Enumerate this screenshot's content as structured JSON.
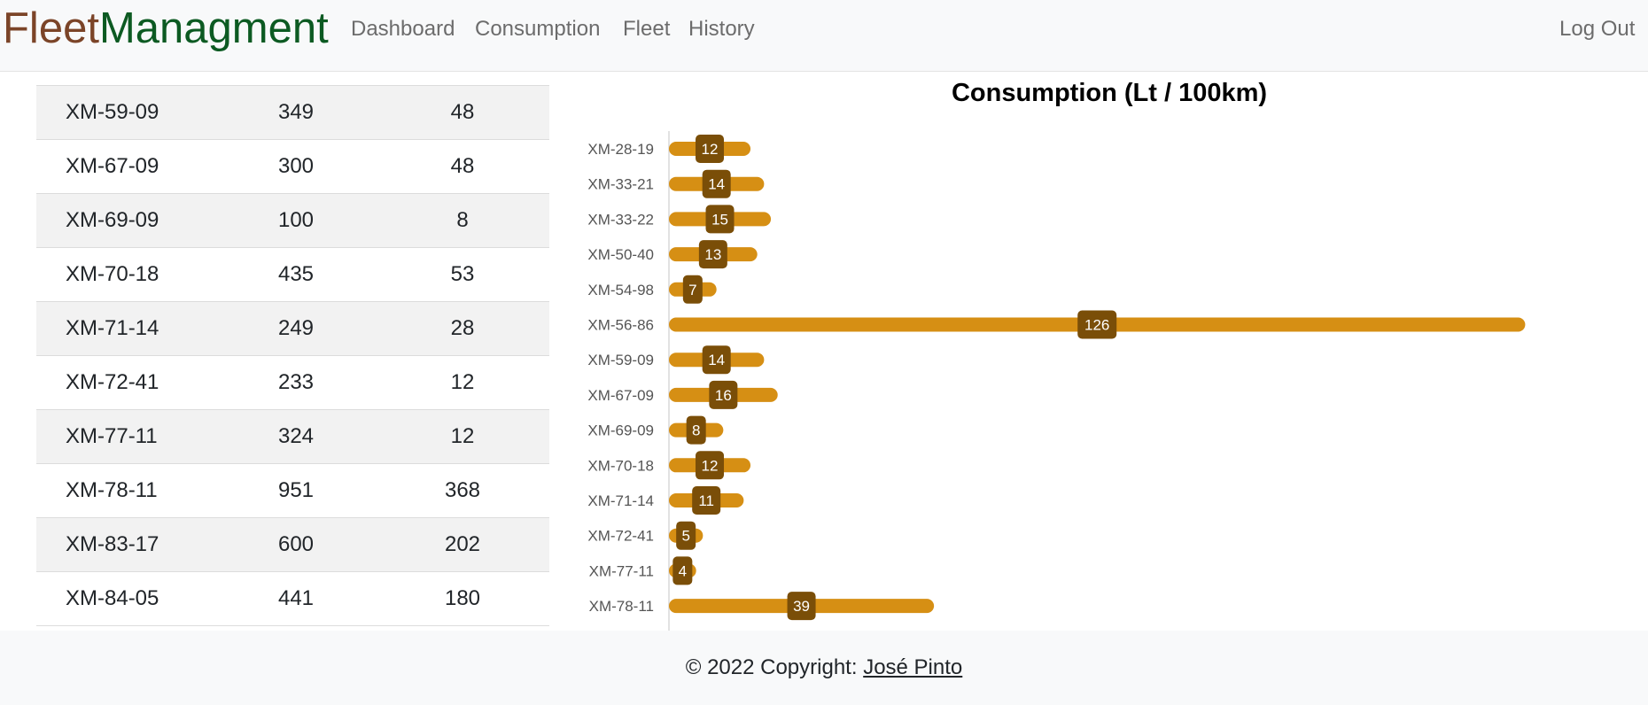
{
  "nav": {
    "brand_part1": "Fleet",
    "brand_part2": "Managment",
    "links": [
      "Dashboard",
      "Consumption",
      "Fleet",
      "History"
    ],
    "logout": "Log Out"
  },
  "table": {
    "rows": [
      [
        "XM-59-09",
        "349",
        "48"
      ],
      [
        "XM-67-09",
        "300",
        "48"
      ],
      [
        "XM-69-09",
        "100",
        "8"
      ],
      [
        "XM-70-18",
        "435",
        "53"
      ],
      [
        "XM-71-14",
        "249",
        "28"
      ],
      [
        "XM-72-41",
        "233",
        "12"
      ],
      [
        "XM-77-11",
        "324",
        "12"
      ],
      [
        "XM-78-11",
        "951",
        "368"
      ],
      [
        "XM-83-17",
        "600",
        "202"
      ],
      [
        "XM-84-05",
        "441",
        "180"
      ]
    ]
  },
  "chart_data": {
    "type": "bar",
    "orientation": "horizontal",
    "title": "Consumption (Lt / 100km)",
    "categories": [
      "XM-28-19",
      "XM-33-21",
      "XM-33-22",
      "XM-50-40",
      "XM-54-98",
      "XM-56-86",
      "XM-59-09",
      "XM-67-09",
      "XM-69-09",
      "XM-70-18",
      "XM-71-14",
      "XM-72-41",
      "XM-77-11",
      "XM-78-11"
    ],
    "values": [
      12,
      14,
      15,
      13,
      7,
      126,
      14,
      16,
      8,
      12,
      11,
      5,
      4,
      39
    ],
    "bar_color": "#d68f14",
    "label_color": "#7a4e08",
    "grid": false,
    "legend": "none"
  },
  "footer": {
    "text": "© 2022 Copyright: ",
    "author": "José Pinto"
  }
}
